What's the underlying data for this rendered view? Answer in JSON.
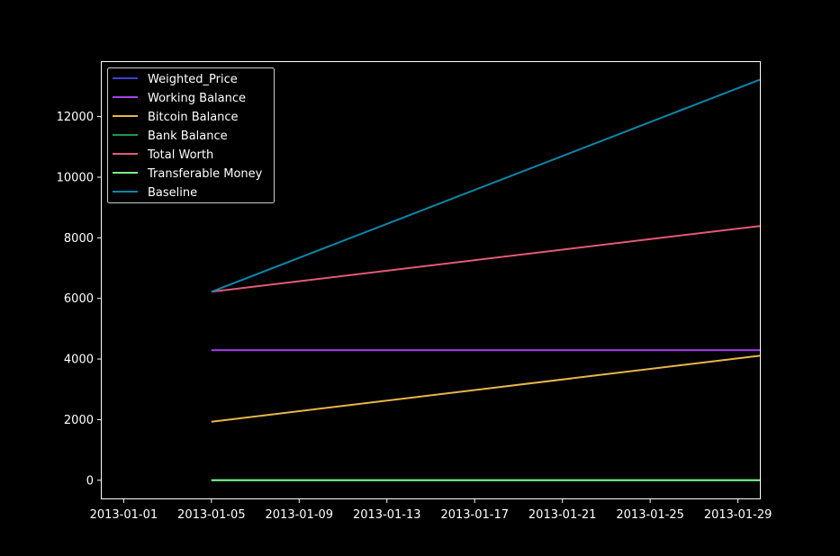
{
  "chart_data": {
    "type": "line",
    "title": "",
    "xlabel": "",
    "ylabel": "",
    "x_axis": {
      "type": "date",
      "range": [
        "2012-12-31",
        "2013-01-30"
      ],
      "ticks": [
        "2013-01-01",
        "2013-01-05",
        "2013-01-09",
        "2013-01-13",
        "2013-01-17",
        "2013-01-21",
        "2013-01-25",
        "2013-01-29"
      ]
    },
    "y_axis": {
      "range": [
        -600,
        13800
      ],
      "ticks": [
        0,
        2000,
        4000,
        6000,
        8000,
        10000,
        12000
      ]
    },
    "grid": false,
    "legend_position": "top-left",
    "series": [
      {
        "name": "Weighted_Price",
        "color": "#3f3fd6",
        "x": [],
        "y": []
      },
      {
        "name": "Working Balance",
        "color": "#a443f0",
        "x": [
          "2013-01-05",
          "2013-01-30"
        ],
        "y": [
          4290,
          4290
        ]
      },
      {
        "name": "Bitcoin Balance",
        "color": "#e8b64a",
        "x": [
          "2013-01-05",
          "2013-01-30"
        ],
        "y": [
          1930,
          4110
        ]
      },
      {
        "name": "Bank Balance",
        "color": "#1f9a4a",
        "x": [
          "2013-01-05",
          "2013-01-30"
        ],
        "y": [
          0,
          0
        ]
      },
      {
        "name": "Total Worth",
        "color": "#e25a78",
        "x": [
          "2013-01-05",
          "2013-01-30"
        ],
        "y": [
          6220,
          8390
        ]
      },
      {
        "name": "Transferable Money",
        "color": "#7cf58a",
        "x": [
          "2013-01-05",
          "2013-01-30"
        ],
        "y": [
          0,
          0
        ]
      },
      {
        "name": "Baseline",
        "color": "#0e86a8",
        "x": [
          "2013-01-05",
          "2013-01-30"
        ],
        "y": [
          6220,
          13220
        ]
      }
    ]
  }
}
